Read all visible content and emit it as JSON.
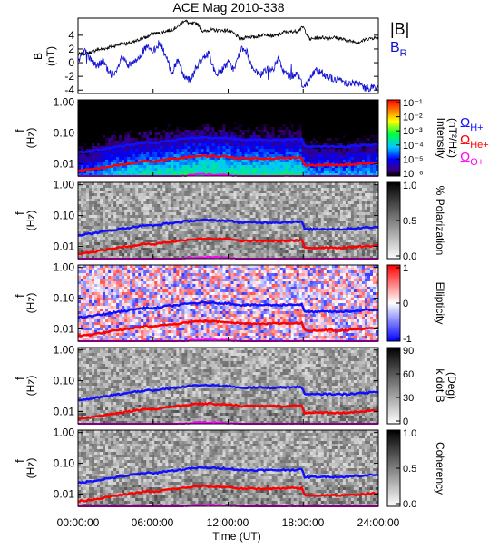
{
  "chart_data": {
    "type": "heatmap",
    "title": "ACE Mag 2010-338",
    "x_ticks": [
      "00:00:00",
      "06:00:00",
      "12:00:00",
      "18:00:00",
      "24:00:00"
    ],
    "xlabel": "Time (UT)",
    "panels": [
      {
        "name": "field",
        "type": "line",
        "ylabel_top": "B",
        "ylabel_bottom": "(nT)",
        "ylim": [
          -4.5,
          6.5
        ],
        "y_ticks": [
          "4",
          "2",
          "0",
          "-2",
          "-4"
        ],
        "y_tick_values": [
          4,
          2,
          0,
          -2,
          -4
        ],
        "series": [
          {
            "name": "|B|",
            "color": "#000000",
            "x_hours": [
              0,
              1,
              1.5,
              2,
              3,
              3.5,
              4,
              4.5,
              5,
              5.5,
              6,
              6.5,
              7,
              7.5,
              8,
              8.5,
              9,
              9.5,
              10,
              10.5,
              11,
              11.5,
              12,
              12.5,
              13,
              13.5,
              14,
              14.5,
              15,
              15.5,
              16,
              16.5,
              17,
              17.5,
              18,
              18.5,
              19,
              19.5,
              20,
              20.5,
              21,
              21.5,
              22,
              22.5,
              23,
              23.5,
              24
            ],
            "values": [
              1.2,
              1.5,
              1.9,
              2.0,
              2.5,
              2.8,
              2.8,
              3.0,
              3.5,
              3.7,
              4.3,
              4.3,
              4.6,
              4.8,
              5.3,
              6.2,
              5.6,
              5.8,
              4.5,
              4.8,
              4.7,
              4.7,
              4.7,
              4.2,
              3.4,
              3.8,
              3.7,
              3.9,
              4.2,
              3.9,
              4.0,
              4.5,
              4.5,
              4.6,
              5.2,
              3.4,
              3.6,
              3.7,
              3.6,
              3.7,
              3.5,
              3.2,
              3.1,
              3.0,
              3.4,
              3.6,
              3.6
            ]
          },
          {
            "name": "B",
            "subscript": "R",
            "color": "#1010d0",
            "x_hours": [
              0,
              0.5,
              1,
              1.5,
              2,
              2.5,
              3,
              3.5,
              4,
              4.5,
              5,
              5.5,
              6,
              6.5,
              7,
              7.5,
              8,
              8.5,
              9,
              9.5,
              10,
              10.5,
              11,
              11.5,
              12,
              12.5,
              13,
              13.5,
              14,
              14.5,
              15,
              15.5,
              16,
              16.5,
              17,
              17.5,
              18,
              18.5,
              19,
              19.5,
              20,
              20.5,
              21,
              21.5,
              22,
              22.5,
              23,
              23.5,
              24
            ],
            "values": [
              0.5,
              1.8,
              0.5,
              -0.5,
              0.2,
              -1.5,
              -1.8,
              0.8,
              -0.5,
              0.0,
              1.2,
              2.3,
              1.5,
              3.0,
              1.0,
              -1.5,
              0.5,
              -2.0,
              -2.5,
              -0.5,
              0.5,
              1.5,
              -2.0,
              -1.0,
              0.0,
              -1.0,
              2.0,
              1.5,
              -1.0,
              -2.0,
              -1.0,
              -1.2,
              0.5,
              -1.5,
              -2.0,
              -1.5,
              -3.5,
              -2.5,
              -1.0,
              -1.5,
              -2.0,
              -2.5,
              -2.5,
              -3.0,
              -3.0,
              -3.2,
              -3.8,
              -3.5,
              -3.8
            ]
          }
        ]
      },
      {
        "name": "intensity",
        "type": "heatmap",
        "ylabel_top": "f",
        "ylabel_bottom": "(Hz)",
        "y_ticks": [
          "1.00",
          "0.10",
          "0.01"
        ],
        "ylim": [
          0.004,
          1.2
        ],
        "yscale": "log",
        "colorbar_ticks": [
          "10⁻¹",
          "10⁻²",
          "10⁻³",
          "10⁻⁴",
          "10⁻⁵",
          "10⁻⁶"
        ],
        "colorbar_label": "Intensity",
        "colorbar_unit": "(nT²/Hz)"
      },
      {
        "name": "polarization",
        "type": "heatmap",
        "ylabel_top": "f",
        "ylabel_bottom": "(Hz)",
        "y_ticks": [
          "1.00",
          "0.10",
          "0.01"
        ],
        "ylim": [
          0.004,
          1.2
        ],
        "yscale": "log",
        "colorbar_ticks": [
          "1.0",
          "0.5",
          "0.0"
        ],
        "colorbar_label": "% Polarization"
      },
      {
        "name": "ellipticity",
        "type": "heatmap",
        "ylabel_top": "f",
        "ylabel_bottom": "(Hz)",
        "y_ticks": [
          "1.00",
          "0.10",
          "0.01"
        ],
        "ylim": [
          0.004,
          1.2
        ],
        "yscale": "log",
        "colorbar_ticks": [
          "1",
          "0",
          "-1"
        ],
        "colorbar_label": "Ellipticity"
      },
      {
        "name": "kdotb",
        "type": "heatmap",
        "ylabel_top": "f",
        "ylabel_bottom": "(Hz)",
        "y_ticks": [
          "1.00",
          "0.10",
          "0.01"
        ],
        "ylim": [
          0.004,
          1.2
        ],
        "yscale": "log",
        "colorbar_ticks": [
          "90",
          "60",
          "30",
          "0"
        ],
        "colorbar_label": "k dot B",
        "colorbar_unit": "(Deg)"
      },
      {
        "name": "coherency",
        "type": "heatmap",
        "ylabel_top": "f",
        "ylabel_bottom": "(Hz)",
        "y_ticks": [
          "1.00",
          "0.10",
          "0.01"
        ],
        "ylim": [
          0.004,
          1.2
        ],
        "yscale": "log",
        "colorbar_ticks": [
          "1.0",
          "0.5",
          "0.0"
        ],
        "colorbar_label": "Coherency"
      }
    ],
    "gyrofrequency_legend": [
      {
        "symbol": "Ω",
        "subscript": "H+",
        "color": "#1010ff"
      },
      {
        "symbol": "Ω",
        "subscript": "He+",
        "color": "#ff0000"
      },
      {
        "symbol": "Ω",
        "subscript": "O+",
        "color": "#ff00ff"
      }
    ],
    "gyro_lines": {
      "x_hours": [
        0,
        1,
        2,
        3,
        4,
        5,
        5.5,
        6,
        7,
        8,
        9,
        10,
        11,
        12,
        13,
        14,
        15,
        16,
        17,
        17.9,
        18.1,
        19,
        20,
        21,
        22,
        23,
        24
      ],
      "H+": [
        0.023,
        0.026,
        0.03,
        0.035,
        0.04,
        0.046,
        0.05,
        0.046,
        0.055,
        0.06,
        0.068,
        0.072,
        0.07,
        0.068,
        0.06,
        0.06,
        0.06,
        0.06,
        0.062,
        0.062,
        0.036,
        0.036,
        0.037,
        0.036,
        0.038,
        0.041,
        0.042
      ],
      "He+": [
        0.0058,
        0.0065,
        0.0075,
        0.0088,
        0.01,
        0.0115,
        0.0125,
        0.0115,
        0.0137,
        0.015,
        0.017,
        0.018,
        0.0175,
        0.017,
        0.015,
        0.015,
        0.015,
        0.015,
        0.0155,
        0.0155,
        0.009,
        0.009,
        0.0093,
        0.009,
        0.0095,
        0.0102,
        0.0105
      ],
      "O+": [
        0.0014,
        0.0016,
        0.0019,
        0.0022,
        0.0025,
        0.0029,
        0.0031,
        0.0029,
        0.0034,
        0.0038,
        0.0043,
        0.0045,
        0.0044,
        0.0043,
        0.0038,
        0.0038,
        0.0038,
        0.0038,
        0.0039,
        0.0039,
        0.0023,
        0.0023,
        0.0023,
        0.0023,
        0.0024,
        0.0026,
        0.0026
      ]
    },
    "colors": {
      "h_plus": "#1010ff",
      "he_plus": "#ff0000",
      "o_plus": "#ff00ff",
      "b_total": "#000000",
      "b_r": "#1010d0"
    }
  }
}
